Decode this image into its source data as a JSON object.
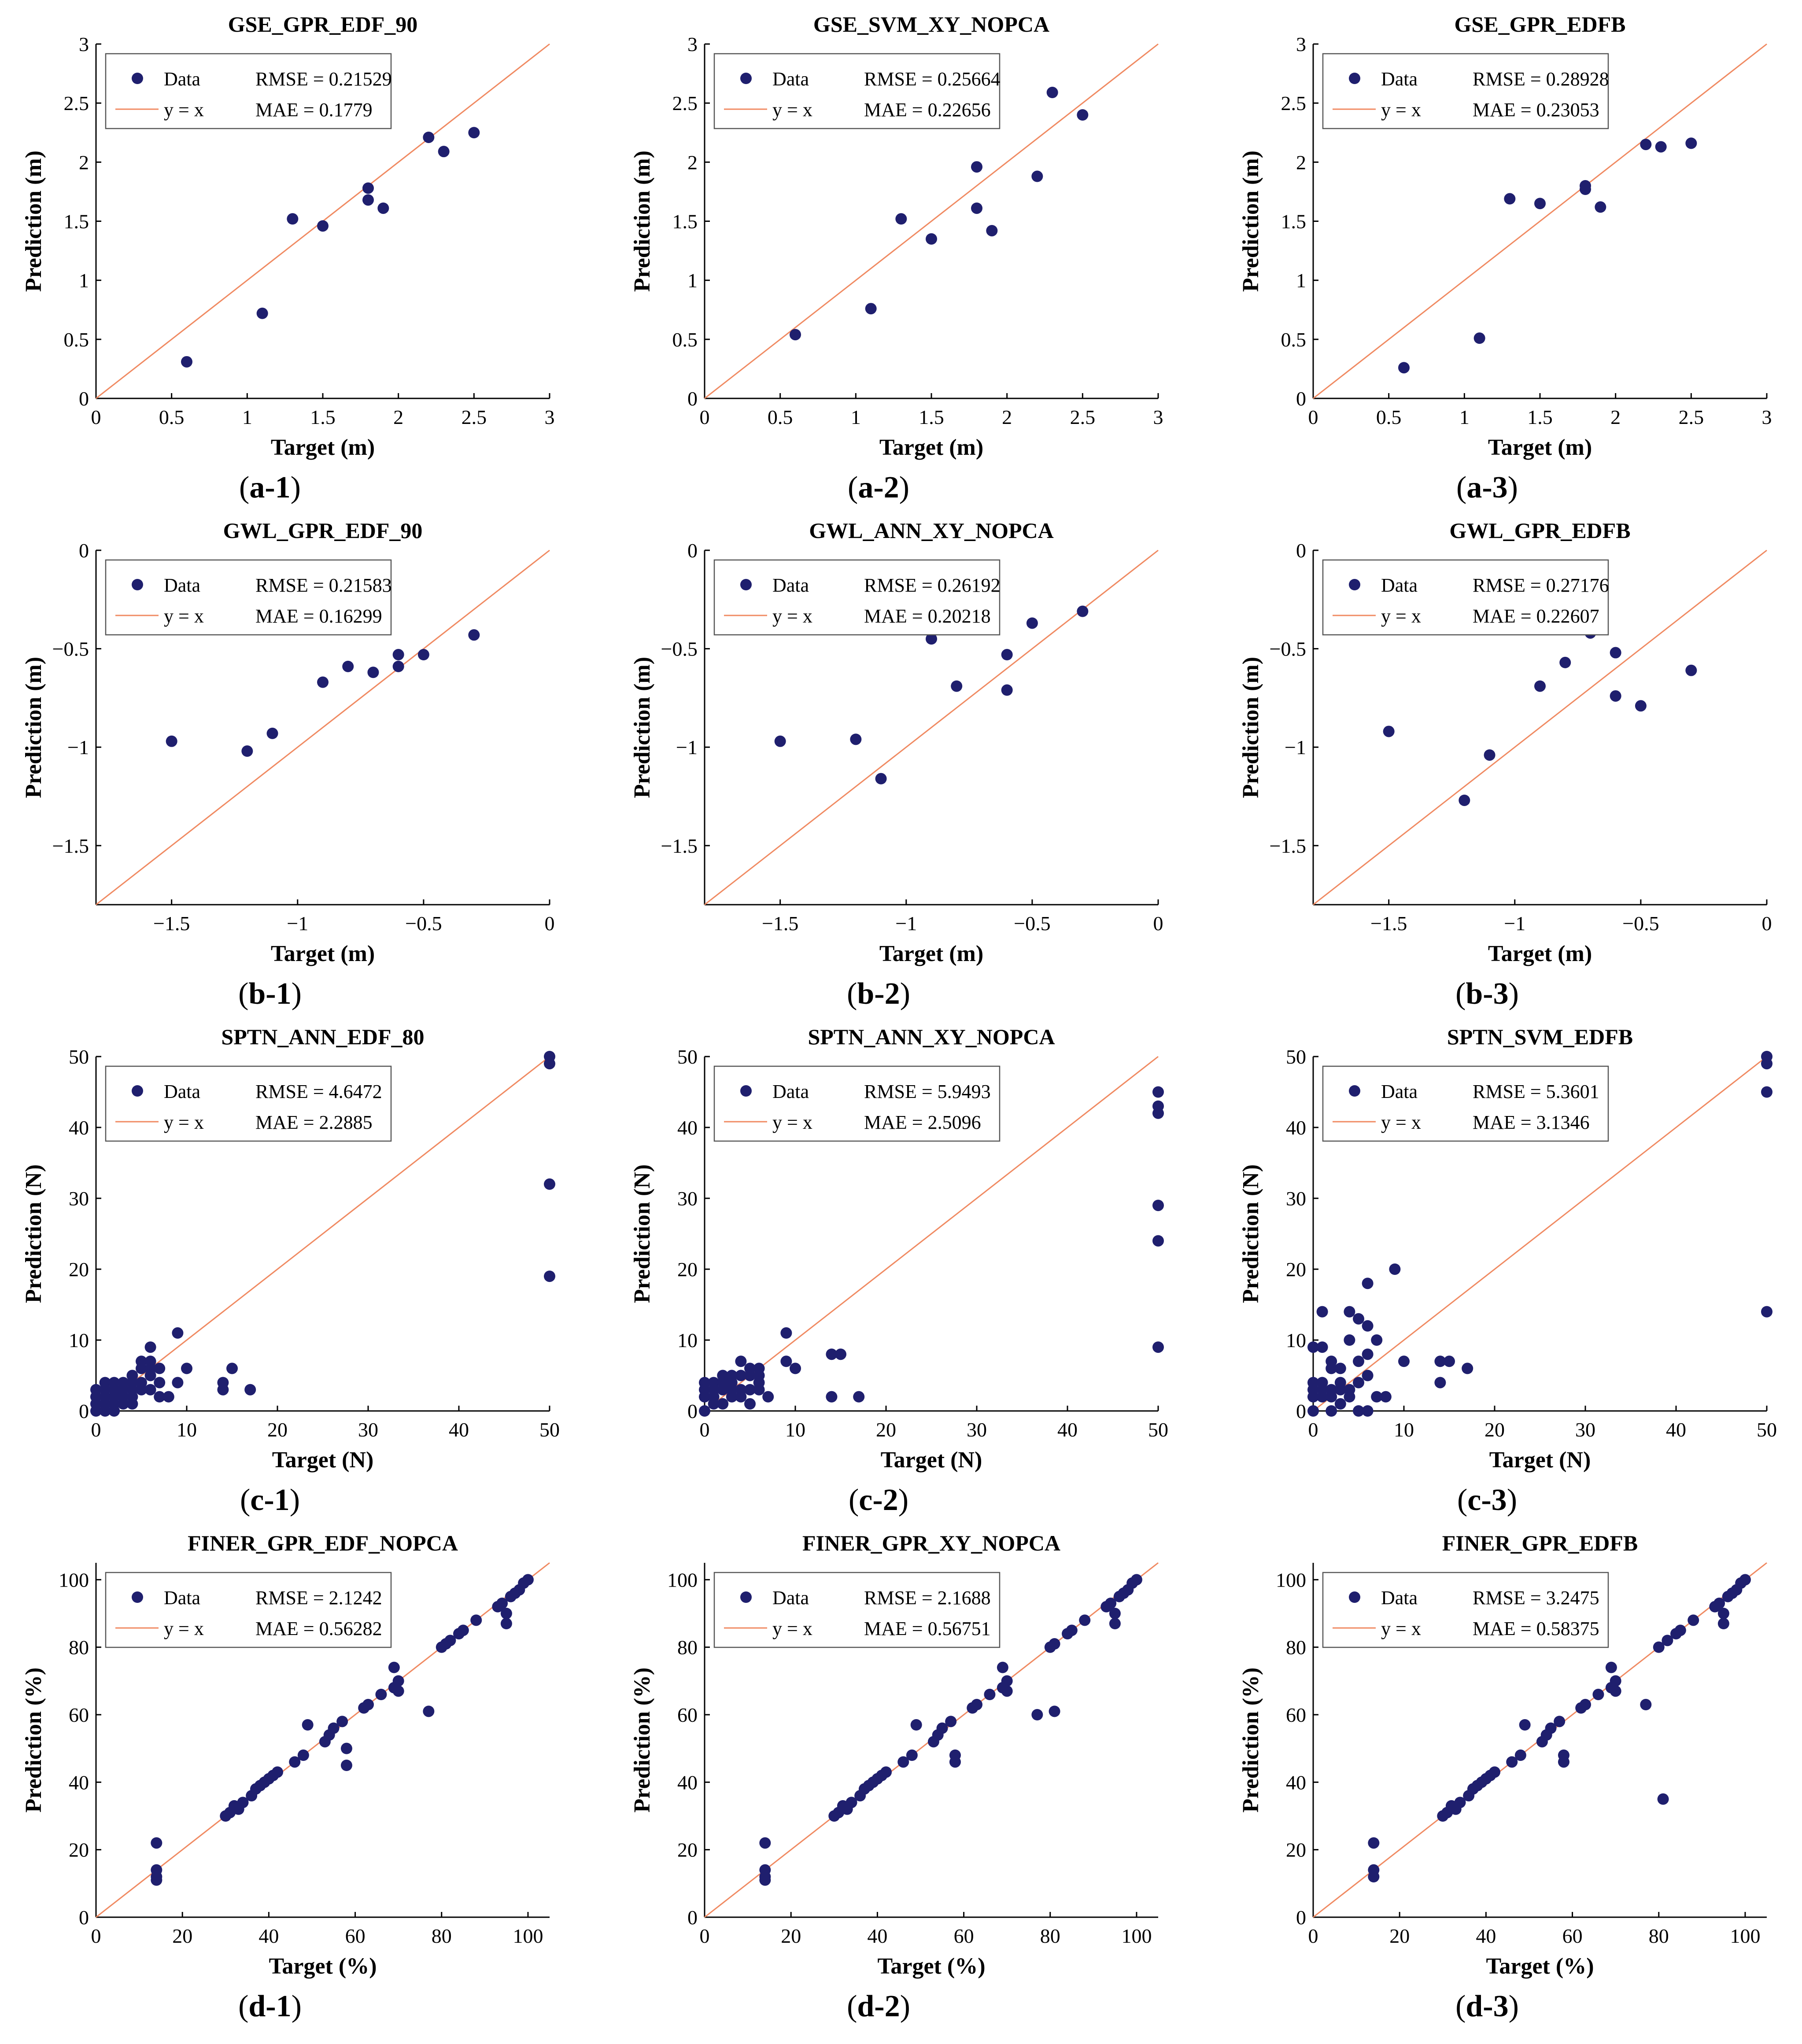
{
  "colors": {
    "data": "#1f1f6e",
    "line": "#f08a62",
    "axis": "#000000"
  },
  "chart_data": [
    {
      "id": "a-1",
      "type": "scatter",
      "title": "GSE_GPR_EDF_90",
      "xlabel": "Target (m)",
      "ylabel": "Prediction (m)",
      "caption": "a-1",
      "xlim": [
        0,
        3
      ],
      "ylim": [
        0,
        3
      ],
      "xticks": [
        0,
        0.5,
        1,
        1.5,
        2,
        2.5,
        3
      ],
      "xtick_labels": [
        "0",
        "0.5",
        "1",
        "1.5",
        "2",
        "2.5",
        "3"
      ],
      "yticks": [
        0,
        0.5,
        1,
        1.5,
        2,
        2.5,
        3
      ],
      "ytick_labels": [
        "0",
        "0.5",
        "1",
        "1.5",
        "2",
        "2.5",
        "3"
      ],
      "legend": {
        "placement": "top-left",
        "data_label": "Data",
        "line_label": "y = x",
        "rmse": "RMSE = 0.21529",
        "mae": "MAE = 0.1779"
      },
      "x": [
        0.6,
        1.1,
        1.3,
        1.5,
        1.8,
        1.8,
        1.9,
        2.2,
        2.3,
        2.5
      ],
      "y": [
        0.31,
        0.72,
        1.52,
        1.46,
        1.78,
        1.68,
        1.61,
        2.21,
        2.09,
        2.25
      ]
    },
    {
      "id": "a-2",
      "type": "scatter",
      "title": "GSE_SVM_XY_NOPCA",
      "xlabel": "Target (m)",
      "ylabel": "Prediction (m)",
      "caption": "a-2",
      "xlim": [
        0,
        3
      ],
      "ylim": [
        0,
        3
      ],
      "xticks": [
        0,
        0.5,
        1,
        1.5,
        2,
        2.5,
        3
      ],
      "xtick_labels": [
        "0",
        "0.5",
        "1",
        "1.5",
        "2",
        "2.5",
        "3"
      ],
      "yticks": [
        0,
        0.5,
        1,
        1.5,
        2,
        2.5,
        3
      ],
      "ytick_labels": [
        "0",
        "0.5",
        "1",
        "1.5",
        "2",
        "2.5",
        "3"
      ],
      "legend": {
        "placement": "top-left",
        "data_label": "Data",
        "line_label": "y = x",
        "rmse": "RMSE = 0.25664",
        "mae": "MAE = 0.22656"
      },
      "x": [
        0.6,
        1.1,
        1.3,
        1.5,
        1.8,
        1.8,
        1.9,
        2.2,
        2.3,
        2.5
      ],
      "y": [
        0.54,
        0.76,
        1.52,
        1.35,
        1.96,
        1.61,
        1.42,
        1.88,
        2.59,
        2.4
      ]
    },
    {
      "id": "a-3",
      "type": "scatter",
      "title": "GSE_GPR_EDFB",
      "xlabel": "Target (m)",
      "ylabel": "Prediction (m)",
      "caption": "a-3",
      "xlim": [
        0,
        3
      ],
      "ylim": [
        0,
        3
      ],
      "xticks": [
        0,
        0.5,
        1,
        1.5,
        2,
        2.5,
        3
      ],
      "xtick_labels": [
        "0",
        "0.5",
        "1",
        "1.5",
        "2",
        "2.5",
        "3"
      ],
      "yticks": [
        0,
        0.5,
        1,
        1.5,
        2,
        2.5,
        3
      ],
      "ytick_labels": [
        "0",
        "0.5",
        "1",
        "1.5",
        "2",
        "2.5",
        "3"
      ],
      "legend": {
        "placement": "top-left",
        "data_label": "Data",
        "line_label": "y = x",
        "rmse": "RMSE = 0.28928",
        "mae": "MAE = 0.23053"
      },
      "x": [
        0.6,
        1.1,
        1.3,
        1.5,
        1.8,
        1.8,
        1.9,
        2.2,
        2.3,
        2.5
      ],
      "y": [
        0.26,
        0.51,
        1.69,
        1.65,
        1.8,
        1.77,
        1.62,
        2.15,
        2.13,
        2.16
      ]
    },
    {
      "id": "b-1",
      "type": "scatter",
      "title": "GWL_GPR_EDF_90",
      "xlabel": "Target (m)",
      "ylabel": "Prediction (m)",
      "caption": "b-1",
      "xlim": [
        -1.8,
        0
      ],
      "ylim": [
        -1.8,
        0
      ],
      "xticks": [
        -1.5,
        -1,
        -0.5,
        0
      ],
      "xtick_labels": [
        "−1.5",
        "−1",
        "−0.5",
        "0"
      ],
      "yticks": [
        -1.5,
        -1,
        -0.5,
        0
      ],
      "ytick_labels": [
        "−1.5",
        "−1",
        "−0.5",
        "0"
      ],
      "legend": {
        "placement": "top-left",
        "data_label": "Data",
        "line_label": "y = x",
        "rmse": "RMSE = 0.21583",
        "mae": "MAE = 0.16299"
      },
      "x": [
        -1.5,
        -1.2,
        -1.1,
        -0.9,
        -0.8,
        -0.7,
        -0.6,
        -0.6,
        -0.5,
        -0.3
      ],
      "y": [
        -0.97,
        -1.02,
        -0.93,
        -0.67,
        -0.59,
        -0.62,
        -0.53,
        -0.59,
        -0.53,
        -0.43
      ]
    },
    {
      "id": "b-2",
      "type": "scatter",
      "title": "GWL_ANN_XY_NOPCA",
      "xlabel": "Target (m)",
      "ylabel": "Prediction (m)",
      "caption": "b-2",
      "xlim": [
        -1.8,
        0
      ],
      "ylim": [
        -1.8,
        0
      ],
      "xticks": [
        -1.5,
        -1,
        -0.5,
        0
      ],
      "xtick_labels": [
        "−1.5",
        "−1",
        "−0.5",
        "0"
      ],
      "yticks": [
        -1.5,
        -1,
        -0.5,
        0
      ],
      "ytick_labels": [
        "−1.5",
        "−1",
        "−0.5",
        "0"
      ],
      "legend": {
        "placement": "top-left",
        "data_label": "Data",
        "line_label": "y = x",
        "rmse": "RMSE = 0.26192",
        "mae": "MAE = 0.20218"
      },
      "x": [
        -1.5,
        -1.2,
        -1.1,
        -0.9,
        -0.8,
        -0.7,
        -0.6,
        -0.6,
        -0.5,
        -0.3
      ],
      "y": [
        -0.97,
        -0.96,
        -1.16,
        -0.45,
        -0.69,
        -0.4,
        -0.53,
        -0.71,
        -0.37,
        -0.31
      ]
    },
    {
      "id": "b-3",
      "type": "scatter",
      "title": "GWL_GPR_EDFB",
      "xlabel": "Target (m)",
      "ylabel": "Prediction (m)",
      "caption": "b-3",
      "xlim": [
        -1.8,
        0
      ],
      "ylim": [
        -1.8,
        0
      ],
      "xticks": [
        -1.5,
        -1,
        -0.5,
        0
      ],
      "xtick_labels": [
        "−1.5",
        "−1",
        "−0.5",
        "0"
      ],
      "yticks": [
        -1.5,
        -1,
        -0.5,
        0
      ],
      "ytick_labels": [
        "−1.5",
        "−1",
        "−0.5",
        "0"
      ],
      "legend": {
        "placement": "top-left",
        "data_label": "Data",
        "line_label": "y = x",
        "rmse": "RMSE = 0.27176",
        "mae": "MAE = 0.22607"
      },
      "x": [
        -1.5,
        -1.2,
        -1.1,
        -0.9,
        -0.8,
        -0.7,
        -0.6,
        -0.6,
        -0.5,
        -0.3
      ],
      "y": [
        -0.92,
        -1.27,
        -1.04,
        -0.69,
        -0.57,
        -0.42,
        -0.52,
        -0.74,
        -0.79,
        -0.61
      ]
    },
    {
      "id": "c-1",
      "type": "scatter",
      "title": "SPTN_ANN_EDF_80",
      "xlabel": "Target (N)",
      "ylabel": "Prediction (N)",
      "caption": "c-1",
      "xlim": [
        0,
        50
      ],
      "ylim": [
        0,
        50
      ],
      "xticks": [
        0,
        10,
        20,
        30,
        40,
        50
      ],
      "xtick_labels": [
        "0",
        "10",
        "20",
        "30",
        "40",
        "50"
      ],
      "yticks": [
        0,
        10,
        20,
        30,
        40,
        50
      ],
      "ytick_labels": [
        "0",
        "10",
        "20",
        "30",
        "40",
        "50"
      ],
      "legend": {
        "placement": "top-left",
        "data_label": "Data",
        "line_label": "y = x",
        "rmse": "RMSE = 4.6472",
        "mae": "MAE = 2.2885"
      },
      "x": [
        0,
        0,
        0,
        0,
        1,
        1,
        1,
        1,
        1,
        2,
        2,
        2,
        2,
        2,
        3,
        3,
        3,
        3,
        3,
        4,
        4,
        4,
        4,
        4,
        5,
        5,
        5,
        5,
        6,
        6,
        6,
        6,
        6,
        7,
        7,
        7,
        8,
        9,
        9,
        10,
        14,
        14,
        15,
        17,
        50,
        50,
        50,
        50
      ],
      "y": [
        0,
        1,
        2,
        3,
        1,
        2,
        3,
        4,
        0,
        1,
        2,
        3,
        4,
        0,
        1,
        2,
        3,
        4,
        2,
        1,
        2,
        3,
        4,
        5,
        3,
        4,
        6,
        7,
        3,
        5,
        6,
        7,
        9,
        2,
        4,
        6,
        2,
        4,
        11,
        6,
        3,
        4,
        6,
        3,
        50,
        49,
        32,
        19
      ]
    },
    {
      "id": "c-2",
      "type": "scatter",
      "title": "SPTN_ANN_XY_NOPCA",
      "xlabel": "Target (N)",
      "ylabel": "Prediction (N)",
      "caption": "c-2",
      "xlim": [
        0,
        50
      ],
      "ylim": [
        0,
        50
      ],
      "xticks": [
        0,
        10,
        20,
        30,
        40,
        50
      ],
      "xtick_labels": [
        "0",
        "10",
        "20",
        "30",
        "40",
        "50"
      ],
      "yticks": [
        0,
        10,
        20,
        30,
        40,
        50
      ],
      "ytick_labels": [
        "0",
        "10",
        "20",
        "30",
        "40",
        "50"
      ],
      "legend": {
        "placement": "top-left",
        "data_label": "Data",
        "line_label": "y = x",
        "rmse": "RMSE = 5.9493",
        "mae": "MAE = 2.5096"
      },
      "x": [
        0,
        0,
        0,
        0,
        1,
        1,
        1,
        1,
        2,
        2,
        2,
        2,
        3,
        3,
        3,
        3,
        4,
        4,
        4,
        4,
        5,
        5,
        5,
        5,
        6,
        6,
        6,
        6,
        7,
        9,
        9,
        10,
        14,
        14,
        15,
        17,
        50,
        50,
        50,
        50,
        50,
        50
      ],
      "y": [
        0,
        2,
        3,
        4,
        1,
        2,
        3,
        4,
        1,
        3,
        4,
        5,
        2,
        3,
        4,
        5,
        2,
        3,
        5,
        7,
        1,
        3,
        5,
        6,
        3,
        4,
        5,
        6,
        2,
        7,
        11,
        6,
        2,
        8,
        8,
        2,
        45,
        43,
        42,
        29,
        24,
        9
      ]
    },
    {
      "id": "c-3",
      "type": "scatter",
      "title": "SPTN_SVM_EDFB",
      "xlabel": "Target (N)",
      "ylabel": "Prediction (N)",
      "caption": "c-3",
      "xlim": [
        0,
        50
      ],
      "ylim": [
        0,
        50
      ],
      "xticks": [
        0,
        10,
        20,
        30,
        40,
        50
      ],
      "xtick_labels": [
        "0",
        "10",
        "20",
        "30",
        "40",
        "50"
      ],
      "yticks": [
        0,
        10,
        20,
        30,
        40,
        50
      ],
      "ytick_labels": [
        "0",
        "10",
        "20",
        "30",
        "40",
        "50"
      ],
      "legend": {
        "placement": "top-left",
        "data_label": "Data",
        "line_label": "y = x",
        "rmse": "RMSE = 5.3601",
        "mae": "MAE = 3.1346"
      },
      "x": [
        0,
        0,
        0,
        0,
        0,
        1,
        1,
        1,
        1,
        1,
        2,
        2,
        2,
        2,
        2,
        3,
        3,
        3,
        3,
        4,
        4,
        4,
        4,
        5,
        5,
        5,
        5,
        6,
        6,
        6,
        6,
        6,
        7,
        7,
        8,
        9,
        10,
        14,
        14,
        15,
        17,
        50,
        50,
        50,
        50
      ],
      "y": [
        0,
        2,
        3,
        4,
        9,
        2,
        3,
        4,
        9,
        14,
        0,
        2,
        3,
        6,
        7,
        1,
        3,
        4,
        6,
        2,
        3,
        10,
        14,
        0,
        4,
        7,
        13,
        0,
        5,
        8,
        12,
        18,
        2,
        10,
        2,
        20,
        7,
        4,
        7,
        7,
        6,
        50,
        49,
        45,
        14
      ]
    },
    {
      "id": "d-1",
      "type": "scatter",
      "title": "FINER_GPR_EDF_NOPCA",
      "xlabel": "Target (%)",
      "ylabel": "Prediction (%)",
      "caption": "d-1",
      "xlim": [
        0,
        105
      ],
      "ylim": [
        0,
        105
      ],
      "xticks": [
        0,
        20,
        40,
        60,
        80,
        100
      ],
      "xtick_labels": [
        "0",
        "20",
        "40",
        "60",
        "80",
        "100"
      ],
      "yticks": [
        0,
        20,
        40,
        60,
        80,
        100
      ],
      "ytick_labels": [
        "0",
        "20",
        "40",
        "60",
        "80",
        "100"
      ],
      "legend": {
        "placement": "top-left",
        "data_label": "Data",
        "line_label": "y = x",
        "rmse": "RMSE = 2.1242",
        "mae": "MAE = 0.56282"
      },
      "x": [
        14,
        14,
        14,
        14,
        30,
        31,
        32,
        33,
        34,
        36,
        37,
        38,
        39,
        40,
        41,
        42,
        46,
        48,
        49,
        53,
        54,
        55,
        57,
        58,
        58,
        62,
        63,
        66,
        69,
        69,
        70,
        70,
        77,
        80,
        81,
        82,
        84,
        85,
        88,
        93,
        94,
        95,
        95,
        96,
        97,
        98,
        99,
        100
      ],
      "y": [
        22,
        14,
        12,
        11,
        30,
        31,
        33,
        32,
        34,
        36,
        38,
        39,
        40,
        41,
        42,
        43,
        46,
        48,
        57,
        52,
        54,
        56,
        58,
        50,
        45,
        62,
        63,
        66,
        74,
        68,
        70,
        67,
        61,
        80,
        81,
        82,
        84,
        85,
        88,
        92,
        93,
        90,
        87,
        95,
        96,
        97,
        99,
        100
      ]
    },
    {
      "id": "d-2",
      "type": "scatter",
      "title": "FINER_GPR_XY_NOPCA",
      "xlabel": "Target (%)",
      "ylabel": "Prediction (%)",
      "caption": "d-2",
      "xlim": [
        0,
        105
      ],
      "ylim": [
        0,
        105
      ],
      "xticks": [
        0,
        20,
        40,
        60,
        80,
        100
      ],
      "xtick_labels": [
        "0",
        "20",
        "40",
        "60",
        "80",
        "100"
      ],
      "yticks": [
        0,
        20,
        40,
        60,
        80,
        100
      ],
      "ytick_labels": [
        "0",
        "20",
        "40",
        "60",
        "80",
        "100"
      ],
      "legend": {
        "placement": "top-left",
        "data_label": "Data",
        "line_label": "y = x",
        "rmse": "RMSE = 2.1688",
        "mae": "MAE = 0.56751"
      },
      "x": [
        14,
        14,
        14,
        14,
        30,
        31,
        32,
        33,
        34,
        36,
        37,
        38,
        39,
        40,
        41,
        42,
        46,
        48,
        49,
        53,
        54,
        55,
        57,
        58,
        58,
        62,
        63,
        66,
        69,
        69,
        70,
        70,
        77,
        80,
        81,
        81,
        84,
        85,
        88,
        93,
        94,
        95,
        95,
        96,
        97,
        98,
        99,
        100
      ],
      "y": [
        22,
        14,
        12,
        11,
        30,
        31,
        33,
        32,
        34,
        36,
        38,
        39,
        40,
        41,
        42,
        43,
        46,
        48,
        57,
        52,
        54,
        56,
        58,
        48,
        46,
        62,
        63,
        66,
        74,
        68,
        70,
        67,
        60,
        80,
        81,
        61,
        84,
        85,
        88,
        92,
        93,
        90,
        87,
        95,
        96,
        97,
        99,
        100
      ]
    },
    {
      "id": "d-3",
      "type": "scatter",
      "title": "FINER_GPR_EDFB",
      "xlabel": "Target (%)",
      "ylabel": "Prediction (%)",
      "caption": "d-3",
      "xlim": [
        0,
        105
      ],
      "ylim": [
        0,
        105
      ],
      "xticks": [
        0,
        20,
        40,
        60,
        80,
        100
      ],
      "xtick_labels": [
        "0",
        "20",
        "40",
        "60",
        "80",
        "100"
      ],
      "yticks": [
        0,
        20,
        40,
        60,
        80,
        100
      ],
      "ytick_labels": [
        "0",
        "20",
        "40",
        "60",
        "80",
        "100"
      ],
      "legend": {
        "placement": "top-left",
        "data_label": "Data",
        "line_label": "y = x",
        "rmse": "RMSE = 3.2475",
        "mae": "MAE = 0.58375"
      },
      "x": [
        14,
        14,
        14,
        30,
        31,
        32,
        33,
        34,
        36,
        37,
        38,
        39,
        40,
        41,
        42,
        46,
        48,
        49,
        53,
        54,
        55,
        57,
        58,
        58,
        62,
        63,
        66,
        69,
        69,
        70,
        70,
        77,
        80,
        81,
        82,
        84,
        85,
        88,
        93,
        94,
        95,
        95,
        96,
        97,
        98,
        99,
        100
      ],
      "y": [
        22,
        14,
        12,
        30,
        31,
        33,
        32,
        34,
        36,
        38,
        39,
        40,
        41,
        42,
        43,
        46,
        48,
        57,
        52,
        54,
        56,
        58,
        48,
        46,
        62,
        63,
        66,
        74,
        68,
        70,
        67,
        63,
        80,
        35,
        82,
        84,
        85,
        88,
        92,
        93,
        90,
        87,
        95,
        96,
        97,
        99,
        100
      ]
    }
  ]
}
